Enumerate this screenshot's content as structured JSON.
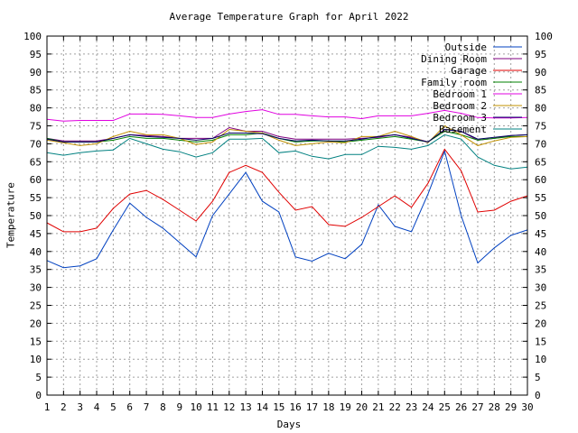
{
  "chart_data": {
    "type": "line",
    "title": "Average Temperature Graph for April 2022",
    "xlabel": "Days",
    "ylabel": "Temperature",
    "xlim": [
      1,
      30
    ],
    "ylim": [
      0,
      100
    ],
    "y_step": 5,
    "grid": true,
    "legend_position": "top-right",
    "x": [
      1,
      2,
      3,
      4,
      5,
      6,
      7,
      8,
      9,
      10,
      11,
      12,
      13,
      14,
      15,
      16,
      17,
      18,
      19,
      20,
      21,
      22,
      23,
      24,
      25,
      26,
      27,
      28,
      29,
      30
    ],
    "series": [
      {
        "name": "Outside",
        "color": "#0040c0",
        "values": [
          37.5,
          35.5,
          36,
          38,
          46,
          53.5,
          49.5,
          46.5,
          42.5,
          38.5,
          50,
          56,
          62,
          54,
          51,
          38.5,
          37.3,
          39.5,
          38,
          42,
          53,
          47,
          45.5,
          56,
          68,
          50,
          36.8,
          41,
          44.5,
          46
        ]
      },
      {
        "name": "Dining Room",
        "color": "#800080",
        "values": [
          71.5,
          70.8,
          70.8,
          70.8,
          71.5,
          72.5,
          72.3,
          72,
          71.5,
          71.5,
          71.5,
          74.5,
          73.5,
          73.5,
          72,
          71.3,
          71.3,
          71.3,
          71.3,
          71.5,
          71.8,
          72.5,
          71.8,
          70.5,
          74,
          73.5,
          71,
          71.5,
          72.3,
          72.5
        ]
      },
      {
        "name": "Garage",
        "color": "#e00000",
        "values": [
          48,
          45.5,
          45.5,
          46.5,
          52,
          56,
          57,
          54.5,
          51.5,
          48.5,
          54,
          62,
          64,
          62,
          56.5,
          51.5,
          52.5,
          47.5,
          47,
          49.5,
          52.5,
          55.5,
          52.3,
          59,
          68.5,
          62.5,
          51,
          51.5,
          54,
          55.5
        ]
      },
      {
        "name": "Family room",
        "color": "#008000",
        "values": [
          71.5,
          70.5,
          70.5,
          70.5,
          71,
          72,
          71.5,
          71.5,
          71,
          70.5,
          71,
          72.5,
          72.5,
          73,
          71.5,
          70.5,
          70.8,
          70.8,
          70.5,
          71,
          71.5,
          72,
          71.3,
          70.5,
          73.5,
          72.5,
          71,
          71.5,
          72,
          72
        ]
      },
      {
        "name": "Bedroom 1",
        "color": "#e000e0",
        "values": [
          76.8,
          76.3,
          76.5,
          76.5,
          76.5,
          78.3,
          78.3,
          78.2,
          77.8,
          77.3,
          77.3,
          78.3,
          79,
          79.5,
          78.2,
          78.2,
          77.8,
          77.5,
          77.5,
          77,
          77.8,
          77.8,
          77.8,
          78.5,
          79.3,
          78.5,
          77.3,
          77.2,
          77.2,
          77.3
        ]
      },
      {
        "name": "Bedroom 2",
        "color": "#c09000",
        "values": [
          71,
          70.3,
          69.5,
          70,
          72,
          73.5,
          72.5,
          72.5,
          71.5,
          69.8,
          70.5,
          74,
          73.5,
          73,
          71,
          69.5,
          70,
          70.5,
          70.3,
          72,
          72,
          73.5,
          72,
          70.3,
          75,
          72.5,
          69.5,
          70.8,
          71.8,
          72
        ]
      },
      {
        "name": "Bedroom 3",
        "color": "#000060",
        "values": [
          71.3,
          70.5,
          70.5,
          70.5,
          71.5,
          72.5,
          72,
          71.8,
          71.5,
          71,
          71.5,
          73,
          73,
          72.8,
          71.5,
          70.8,
          71,
          70.8,
          70.8,
          71.3,
          72,
          72.5,
          71.5,
          70.5,
          74,
          73.5,
          71.3,
          71.8,
          72.3,
          72.5
        ]
      },
      {
        "name": "Basement",
        "color": "#008080",
        "values": [
          67.5,
          66.8,
          67.5,
          68,
          68.3,
          71.5,
          70,
          68.5,
          67.8,
          66.3,
          67.5,
          71.3,
          71.3,
          71.5,
          67.5,
          68,
          66.5,
          65.8,
          67,
          67,
          69.3,
          69,
          68.5,
          69.5,
          72.5,
          71.3,
          66.3,
          64,
          63,
          63.5
        ]
      }
    ]
  }
}
